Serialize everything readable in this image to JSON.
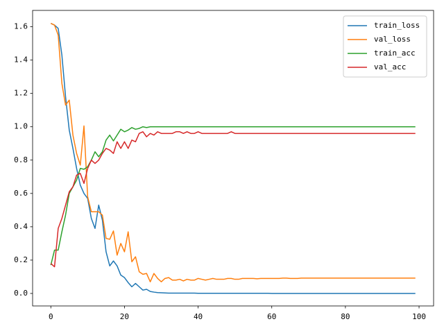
{
  "chart_data": {
    "type": "line",
    "x": [
      0,
      1,
      2,
      3,
      4,
      5,
      6,
      7,
      8,
      9,
      10,
      11,
      12,
      13,
      14,
      15,
      16,
      17,
      18,
      19,
      20,
      21,
      22,
      23,
      24,
      25,
      26,
      27,
      28,
      29,
      30,
      31,
      32,
      33,
      34,
      35,
      36,
      37,
      38,
      39,
      40,
      41,
      42,
      43,
      44,
      45,
      46,
      47,
      48,
      49,
      50,
      51,
      52,
      53,
      54,
      55,
      56,
      57,
      58,
      59,
      60,
      61,
      62,
      63,
      64,
      65,
      66,
      67,
      68,
      69,
      70,
      71,
      72,
      73,
      74,
      75,
      76,
      77,
      78,
      79,
      80,
      81,
      82,
      83,
      84,
      85,
      86,
      87,
      88,
      89,
      90,
      91,
      92,
      93,
      94,
      95,
      96,
      97,
      98,
      99
    ],
    "series": [
      {
        "name": "train_loss",
        "color": "#1f77b4",
        "values": [
          1.62,
          1.61,
          1.59,
          1.43,
          1.18,
          0.98,
          0.87,
          0.75,
          0.65,
          0.6,
          0.57,
          0.45,
          0.39,
          0.53,
          0.44,
          0.25,
          0.165,
          0.195,
          0.165,
          0.11,
          0.095,
          0.065,
          0.04,
          0.06,
          0.04,
          0.02,
          0.025,
          0.012,
          0.008,
          0.005,
          0.004,
          0.003,
          0.002,
          0.002,
          0.002,
          0.002,
          0.002,
          0.002,
          0.002,
          0.002,
          0.001,
          0.001,
          0.001,
          0.001,
          0.001,
          0.001,
          0.001,
          0.001,
          0.001,
          0.001,
          0.001,
          0.001,
          0.001,
          0.001,
          0.001,
          0.001,
          0.001,
          0.001,
          0.001,
          0.001,
          0,
          0,
          0,
          0,
          0,
          0,
          0,
          0,
          0,
          0,
          0,
          0,
          0,
          0,
          0,
          0,
          0,
          0,
          0,
          0,
          0,
          0,
          0,
          0,
          0,
          0,
          0,
          0,
          0,
          0,
          0,
          0,
          0,
          0,
          0,
          0,
          0,
          0,
          0,
          0
        ]
      },
      {
        "name": "val_loss",
        "color": "#ff7f0e",
        "values": [
          1.62,
          1.61,
          1.55,
          1.26,
          1.13,
          1.16,
          0.95,
          0.84,
          0.77,
          1.005,
          0.58,
          0.49,
          0.49,
          0.49,
          0.47,
          0.33,
          0.325,
          0.375,
          0.23,
          0.3,
          0.25,
          0.37,
          0.19,
          0.22,
          0.13,
          0.115,
          0.12,
          0.07,
          0.12,
          0.09,
          0.07,
          0.09,
          0.095,
          0.08,
          0.08,
          0.085,
          0.075,
          0.085,
          0.08,
          0.08,
          0.09,
          0.085,
          0.08,
          0.085,
          0.09,
          0.085,
          0.085,
          0.085,
          0.09,
          0.09,
          0.085,
          0.085,
          0.09,
          0.09,
          0.09,
          0.09,
          0.088,
          0.09,
          0.09,
          0.09,
          0.09,
          0.09,
          0.09,
          0.092,
          0.092,
          0.09,
          0.09,
          0.09,
          0.092,
          0.092,
          0.092,
          0.092,
          0.092,
          0.092,
          0.092,
          0.092,
          0.092,
          0.092,
          0.092,
          0.092,
          0.092,
          0.092,
          0.092,
          0.092,
          0.092,
          0.092,
          0.092,
          0.092,
          0.092,
          0.092,
          0.092,
          0.092,
          0.092,
          0.092,
          0.092,
          0.092,
          0.092,
          0.092,
          0.092,
          0.092
        ]
      },
      {
        "name": "train_acc",
        "color": "#2ca02c",
        "values": [
          0.17,
          0.26,
          0.26,
          0.37,
          0.47,
          0.6,
          0.64,
          0.68,
          0.75,
          0.745,
          0.76,
          0.8,
          0.85,
          0.82,
          0.85,
          0.92,
          0.95,
          0.915,
          0.95,
          0.985,
          0.97,
          0.98,
          0.995,
          0.985,
          0.99,
          1.0,
          0.995,
          1.0,
          1.0,
          1.0,
          1.0,
          1.0,
          1.0,
          1.0,
          1.0,
          1.0,
          1.0,
          1.0,
          1.0,
          1.0,
          1.0,
          1.0,
          1.0,
          1.0,
          1.0,
          1.0,
          1.0,
          1.0,
          1.0,
          1.0,
          1.0,
          1.0,
          1.0,
          1.0,
          1.0,
          1.0,
          1.0,
          1.0,
          1.0,
          1.0,
          1.0,
          1.0,
          1.0,
          1.0,
          1.0,
          1.0,
          1.0,
          1.0,
          1.0,
          1.0,
          1.0,
          1.0,
          1.0,
          1.0,
          1.0,
          1.0,
          1.0,
          1.0,
          1.0,
          1.0,
          1.0,
          1.0,
          1.0,
          1.0,
          1.0,
          1.0,
          1.0,
          1.0,
          1.0,
          1.0,
          1.0,
          1.0,
          1.0,
          1.0,
          1.0,
          1.0,
          1.0,
          1.0,
          1.0,
          1.0
        ]
      },
      {
        "name": "val_acc",
        "color": "#d62728",
        "values": [
          0.18,
          0.16,
          0.39,
          0.45,
          0.53,
          0.61,
          0.64,
          0.71,
          0.72,
          0.66,
          0.75,
          0.8,
          0.78,
          0.8,
          0.84,
          0.87,
          0.86,
          0.84,
          0.91,
          0.87,
          0.91,
          0.87,
          0.92,
          0.91,
          0.96,
          0.97,
          0.94,
          0.96,
          0.95,
          0.97,
          0.96,
          0.96,
          0.96,
          0.96,
          0.97,
          0.97,
          0.96,
          0.97,
          0.96,
          0.96,
          0.97,
          0.96,
          0.96,
          0.96,
          0.96,
          0.96,
          0.96,
          0.96,
          0.96,
          0.97,
          0.96,
          0.96,
          0.96,
          0.96,
          0.96,
          0.96,
          0.96,
          0.96,
          0.96,
          0.96,
          0.96,
          0.96,
          0.96,
          0.96,
          0.96,
          0.96,
          0.96,
          0.96,
          0.96,
          0.96,
          0.96,
          0.96,
          0.96,
          0.96,
          0.96,
          0.96,
          0.96,
          0.96,
          0.96,
          0.96,
          0.96,
          0.96,
          0.96,
          0.96,
          0.96,
          0.96,
          0.96,
          0.96,
          0.96,
          0.96,
          0.96,
          0.96,
          0.96,
          0.96,
          0.96,
          0.96,
          0.96,
          0.96,
          0.96,
          0.96
        ]
      }
    ],
    "xlim": [
      -4.95,
      103.95
    ],
    "xticks": [
      0,
      20,
      40,
      60,
      80,
      100
    ],
    "ylim": [
      -0.075,
      1.698
    ],
    "yticks": [
      {
        "value": 0,
        "label": "0.0"
      },
      {
        "value": 0.2,
        "label": "0.2"
      },
      {
        "value": 0.4,
        "label": "0.4"
      },
      {
        "value": 0.6,
        "label": "0.6"
      },
      {
        "value": 0.8,
        "label": "0.8"
      },
      {
        "value": 1.0,
        "label": "1.0"
      },
      {
        "value": 1.2,
        "label": "1.2"
      },
      {
        "value": 1.4,
        "label": "1.4"
      },
      {
        "value": 1.6,
        "label": "1.6"
      }
    ],
    "legend": "upper right"
  }
}
